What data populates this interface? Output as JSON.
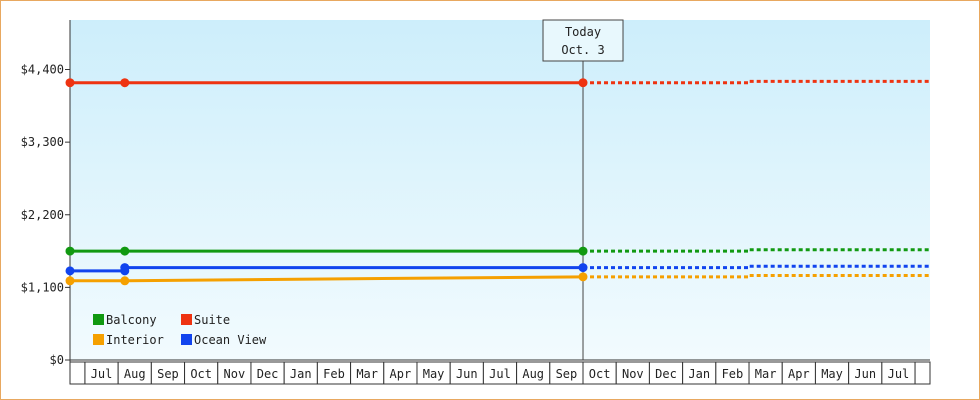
{
  "chart_data": {
    "type": "line",
    "today_label": "Today",
    "today_date": "Oct. 3",
    "today_x": 15,
    "categories": [
      "Jul",
      "Aug",
      "Sep",
      "Oct",
      "Nov",
      "Dec",
      "Jan",
      "Feb",
      "Mar",
      "Apr",
      "May",
      "Jun",
      "Jul",
      "Aug",
      "Sep",
      "Oct",
      "Nov",
      "Dec",
      "Jan",
      "Feb",
      "Mar",
      "Apr",
      "May",
      "Jun",
      "Jul"
    ],
    "xlim": [
      -0.45,
      25.45
    ],
    "ylim": [
      0,
      5150
    ],
    "yticks": [
      {
        "value": 0,
        "label": "$0"
      },
      {
        "value": 1100,
        "label": "$1,100"
      },
      {
        "value": 2200,
        "label": "$2,200"
      },
      {
        "value": 3300,
        "label": "$3,300"
      },
      {
        "value": 4400,
        "label": "$4,400"
      }
    ],
    "series": [
      {
        "name": "Balcony",
        "color": "#119911",
        "x": [
          -0.45,
          1.2,
          15
        ],
        "values": [
          1650,
          1650,
          1650
        ],
        "forecast_x": [
          15,
          20,
          20,
          25.45
        ],
        "forecast_values": [
          1650,
          1650,
          1670,
          1670
        ]
      },
      {
        "name": "Suite",
        "color": "#ee3311",
        "x": [
          -0.45,
          1.2,
          15
        ],
        "values": [
          4200,
          4200,
          4200
        ],
        "forecast_x": [
          15,
          20,
          20,
          25.45
        ],
        "forecast_values": [
          4200,
          4200,
          4220,
          4220
        ]
      },
      {
        "name": "Interior",
        "color": "#f5a000",
        "x": [
          -0.45,
          1.2,
          15
        ],
        "values": [
          1200,
          1200,
          1260
        ],
        "forecast_x": [
          15,
          20,
          20,
          25.45
        ],
        "forecast_values": [
          1260,
          1260,
          1280,
          1280
        ]
      },
      {
        "name": "Ocean View",
        "color": "#1144ee",
        "x": [
          -0.45,
          1.2,
          1.2,
          15
        ],
        "values": [
          1350,
          1350,
          1400,
          1400
        ],
        "forecast_x": [
          15,
          20,
          20,
          25.45
        ],
        "forecast_values": [
          1400,
          1400,
          1420,
          1420
        ]
      }
    ]
  }
}
